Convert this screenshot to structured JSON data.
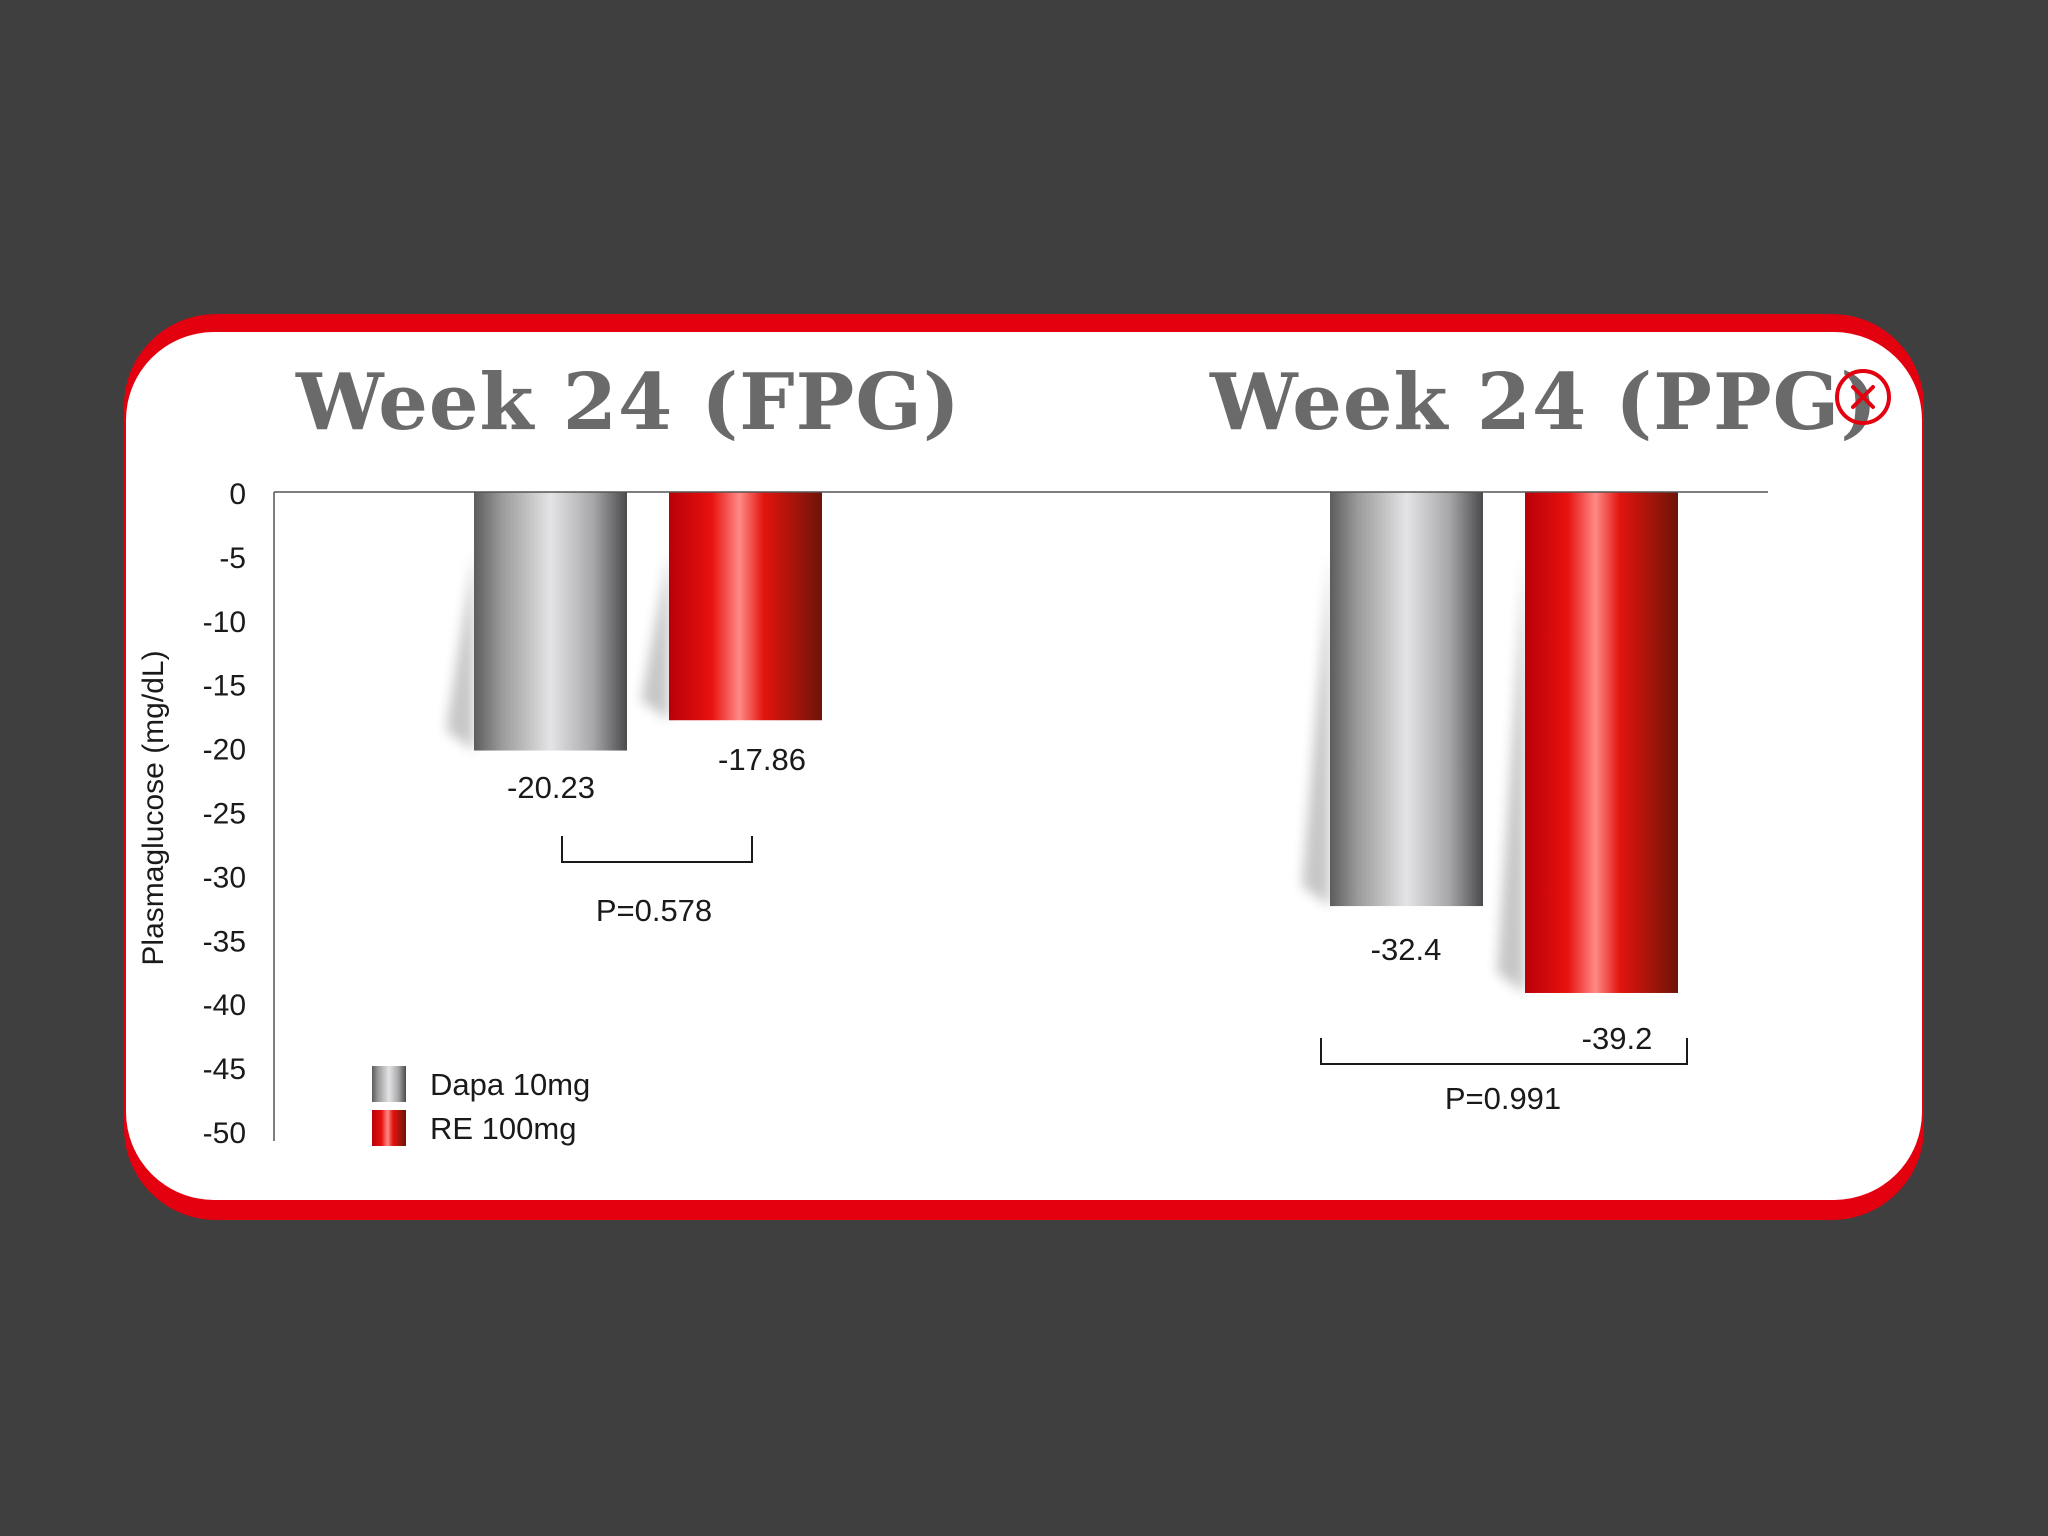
{
  "colors": {
    "background": "#3f3f3f",
    "accent": "#e3000f",
    "title": "#6a6a6a",
    "dapa": "#9a9a9a",
    "re": "#d4000b"
  },
  "close": {
    "icon": "close-circle-icon"
  },
  "chart_data": {
    "type": "bar",
    "ylabel": "Plasmaglucose (mg/dL)",
    "ylim": [
      -50,
      0
    ],
    "yticks": [
      0,
      -5,
      -10,
      -15,
      -20,
      -25,
      -30,
      -35,
      -40,
      -45,
      -50
    ],
    "panels": [
      {
        "title": "Week 24 (FPG)",
        "values": [
          -20.23,
          -17.86
        ],
        "labels": [
          "-20.23",
          "-17.86"
        ],
        "p_value": "P=0.578"
      },
      {
        "title": "Week 24 (PPG)",
        "values": [
          -32.4,
          -39.2
        ],
        "labels": [
          "-32.4",
          "-39.2"
        ],
        "p_value": "P=0.991"
      }
    ],
    "series": [
      {
        "name": "Dapa 10mg",
        "color": "#9a9a9a"
      },
      {
        "name": "RE 100mg",
        "color": "#d4000b"
      }
    ],
    "legend": "bottom-left"
  }
}
